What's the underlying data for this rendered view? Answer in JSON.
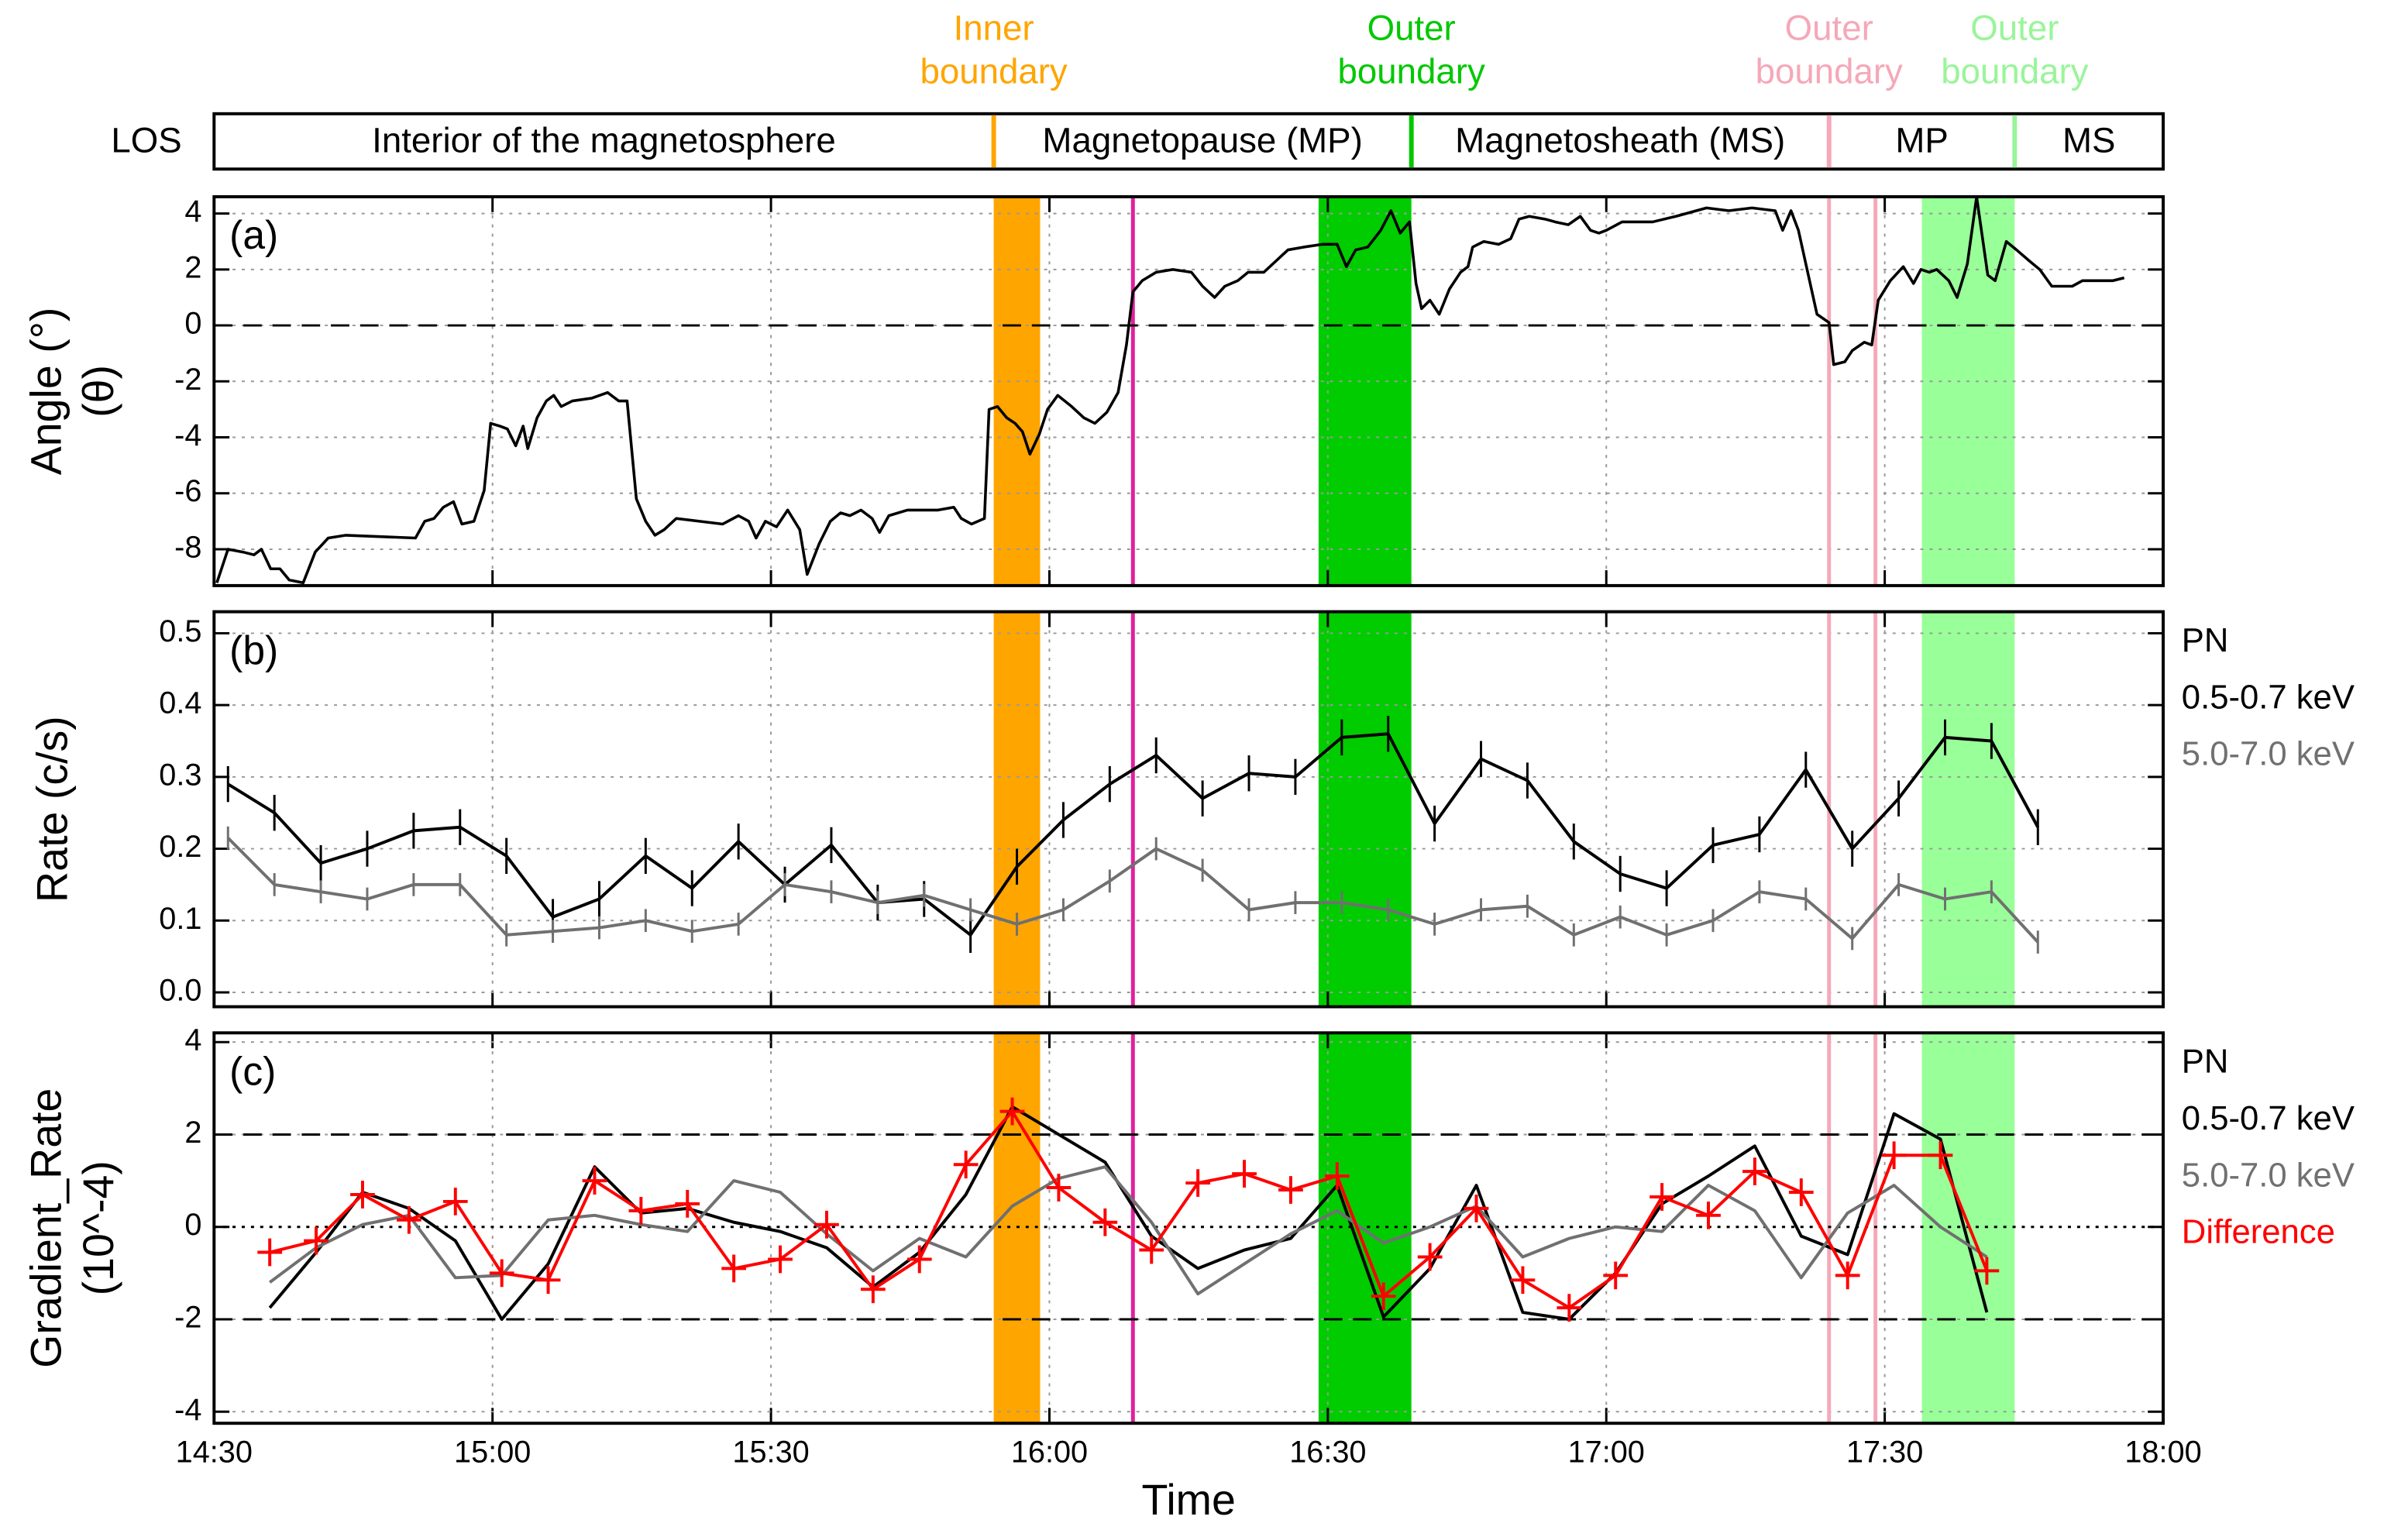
{
  "los": {
    "label": "LOS",
    "segments": [
      "Interior of the magnetosphere",
      "Magnetopause (MP)",
      "Magnetosheath (MS)",
      "MP",
      "MS"
    ],
    "separators": [
      {
        "x": 954,
        "color": "#ffa500",
        "label": [
          "Inner",
          "boundary"
        ]
      },
      {
        "x": 999,
        "color": "#00c800",
        "label": [
          "Outer",
          "boundary"
        ]
      },
      {
        "x": 1044,
        "color": "#f5a8b8",
        "label": [
          "Outer",
          "boundary"
        ]
      },
      {
        "x": 1064,
        "color": "#99f599",
        "label": [
          "Outer",
          "boundary"
        ]
      }
    ]
  },
  "time_markers": {
    "bands": [
      {
        "from": 954,
        "to": 959,
        "color": "#ffa500"
      },
      {
        "from": 989,
        "to": 999,
        "color": "#00cc00"
      },
      {
        "from": 1054,
        "to": 1064,
        "color": "#99ff99"
      }
    ],
    "lines": [
      {
        "at": 969,
        "color": "#e0209c"
      },
      {
        "at": 1044,
        "color": "#f5a8b8"
      },
      {
        "at": 1049,
        "color": "#f5a8b8"
      }
    ]
  },
  "chart_data": [
    {
      "type": "line",
      "panel_label": "(a)",
      "ylabel": [
        "Angle (°)",
        "(θ)"
      ],
      "color": "#000000",
      "xlim": [
        870,
        1080
      ],
      "xticks": [
        870,
        900,
        930,
        960,
        990,
        1020,
        1050,
        1080
      ],
      "ylim": [
        -9.3,
        4.6
      ],
      "yticks": [
        -8,
        -6,
        -4,
        -2,
        0,
        2,
        4
      ],
      "grid": true,
      "reference_lines": [
        {
          "value": 0,
          "style": "dashed"
        }
      ],
      "x": [
        870.3,
        871.5,
        873.1,
        874.3,
        875.1,
        876.1,
        877.1,
        878.1,
        879.6,
        880.9,
        882.3,
        884.2,
        891.7,
        892.7,
        893.7,
        894.7,
        895.8,
        896.7,
        898.0,
        899.1,
        899.8,
        900.8,
        901.6,
        902.5,
        903.3,
        903.8,
        904.8,
        905.8,
        906.6,
        907.4,
        908.6,
        910.7,
        912.4,
        913.6,
        914.5,
        915.5,
        916.5,
        917.5,
        918.5,
        919.8,
        922.3,
        924.8,
        926.5,
        927.6,
        928.4,
        929.4,
        930.6,
        931.8,
        933.1,
        933.9,
        935.2,
        936.4,
        937.5,
        938.5,
        939.7,
        940.9,
        941.7,
        942.7,
        944.7,
        948.0,
        949.7,
        950.5,
        951.6,
        953.0,
        953.5,
        954.4,
        955.4,
        956.3,
        957.1,
        957.9,
        958.9,
        959.8,
        960.9,
        962.4,
        963.7,
        964.9,
        966.2,
        967.4,
        968.3,
        969.0,
        970.0,
        971.5,
        973.3,
        975.3,
        976.5,
        977.8,
        978.9,
        980.3,
        981.4,
        983.1,
        984.4,
        985.7,
        987.4,
        989.4,
        991.0,
        992.0,
        993.0,
        994.3,
        995.7,
        996.8,
        997.8,
        998.8,
        999.5,
        1000.1,
        1001.0,
        1002.0,
        1003.1,
        1004.3,
        1005.1,
        1005.6,
        1006.8,
        1008.4,
        1009.7,
        1010.6,
        1011.7,
        1013.4,
        1014.5,
        1015.9,
        1017.2,
        1018.3,
        1019.2,
        1020.0,
        1021.7,
        1025.0,
        1027.5,
        1030.8,
        1033.2,
        1035.7,
        1038.2,
        1039.0,
        1039.9,
        1040.7,
        1041.5,
        1042.7,
        1044.0,
        1044.5,
        1045.7,
        1046.5,
        1047.8,
        1048.6,
        1049.3,
        1050.6,
        1052.0,
        1053.1,
        1053.9,
        1054.8,
        1055.6,
        1056.9,
        1057.8,
        1058.9,
        1059.9,
        1061.1,
        1061.9,
        1063.1,
        1064.2,
        1065.6,
        1066.7,
        1068.0,
        1070.2,
        1071.3,
        1073.8,
        1074.6,
        1075.8
      ],
      "values": [
        -9.2,
        -8.0,
        -8.1,
        -8.2,
        -8.0,
        -8.7,
        -8.7,
        -9.1,
        -9.2,
        -8.1,
        -7.6,
        -7.5,
        -7.6,
        -7.0,
        -6.9,
        -6.5,
        -6.3,
        -7.1,
        -7.0,
        -5.9,
        -3.5,
        -3.6,
        -3.7,
        -4.3,
        -3.6,
        -4.4,
        -3.3,
        -2.7,
        -2.5,
        -2.9,
        -2.7,
        -2.6,
        -2.4,
        -2.7,
        -2.7,
        -6.2,
        -7.0,
        -7.5,
        -7.3,
        -6.9,
        -7.0,
        -7.1,
        -6.8,
        -7.0,
        -7.6,
        -7.0,
        -7.2,
        -6.6,
        -7.3,
        -8.9,
        -7.8,
        -7.0,
        -6.7,
        -6.8,
        -6.6,
        -6.9,
        -7.4,
        -6.8,
        -6.6,
        -6.6,
        -6.5,
        -6.9,
        -7.1,
        -6.9,
        -3.0,
        -2.9,
        -3.3,
        -3.5,
        -3.8,
        -4.6,
        -3.9,
        -3.0,
        -2.5,
        -2.9,
        -3.3,
        -3.5,
        -3.1,
        -2.4,
        -0.7,
        1.2,
        1.6,
        1.9,
        2.0,
        1.9,
        1.4,
        1.0,
        1.4,
        1.6,
        1.9,
        1.9,
        2.3,
        2.7,
        2.8,
        2.9,
        2.9,
        2.1,
        2.7,
        2.8,
        3.4,
        4.1,
        3.3,
        3.7,
        1.5,
        0.6,
        0.9,
        0.4,
        1.3,
        1.9,
        2.1,
        2.8,
        3.0,
        2.9,
        3.1,
        3.8,
        3.9,
        3.8,
        3.7,
        3.6,
        3.9,
        3.4,
        3.3,
        3.4,
        3.7,
        3.7,
        3.9,
        4.2,
        4.1,
        4.2,
        4.1,
        3.4,
        4.1,
        3.4,
        2.2,
        0.4,
        0.1,
        -1.4,
        -1.3,
        -0.9,
        -0.6,
        -0.7,
        0.9,
        1.6,
        2.1,
        1.5,
        2.0,
        1.9,
        2.0,
        1.6,
        1.0,
        2.2,
        4.6,
        1.8,
        1.6,
        3.0,
        2.7,
        2.3,
        2.0,
        1.4,
        1.4,
        1.6,
        1.6,
        1.6,
        1.7
      ]
    },
    {
      "type": "line",
      "panel_label": "(b)",
      "ylabel": [
        "Rate (c/s)"
      ],
      "legend_title": "PN",
      "xlim": [
        870,
        1080
      ],
      "xticks": [
        870,
        900,
        930,
        960,
        990,
        1020,
        1050,
        1080
      ],
      "ylim": [
        -0.02,
        0.53
      ],
      "yticks": [
        {
          "value": 0,
          "label": "0.0"
        },
        0.1,
        0.2,
        0.3,
        0.4,
        0.5
      ],
      "grid": true,
      "x": [
        871.5,
        876.5,
        881.5,
        886.5,
        891.5,
        896.5,
        901.5,
        906.5,
        911.5,
        916.5,
        921.5,
        926.5,
        931.5,
        936.5,
        941.5,
        946.5,
        951.5,
        956.5,
        961.5,
        966.5,
        971.5,
        976.5,
        981.5,
        986.5,
        991.5,
        996.5,
        1001.5,
        1006.5,
        1011.5,
        1016.5,
        1021.5,
        1026.5,
        1031.5,
        1036.5,
        1041.5,
        1046.5,
        1051.5,
        1056.5,
        1061.5,
        1066.5
      ],
      "series": [
        {
          "name": "0.5-0.7 keV",
          "color": "#000000",
          "values": [
            0.29,
            0.25,
            0.18,
            0.2,
            0.225,
            0.23,
            0.19,
            0.105,
            0.13,
            0.19,
            0.145,
            0.21,
            0.15,
            0.205,
            0.125,
            0.13,
            0.08,
            0.175,
            0.24,
            0.29,
            0.33,
            0.27,
            0.305,
            0.3,
            0.355,
            0.36,
            0.235,
            0.325,
            0.295,
            0.21,
            0.165,
            0.145,
            0.205,
            0.22,
            0.31,
            0.2,
            0.27,
            0.355,
            0.35,
            0.23
          ],
          "errors": [
            0.025,
            0.025,
            0.025,
            0.025,
            0.025,
            0.025,
            0.025,
            0.025,
            0.025,
            0.025,
            0.025,
            0.025,
            0.025,
            0.025,
            0.025,
            0.025,
            0.025,
            0.025,
            0.025,
            0.025,
            0.025,
            0.025,
            0.025,
            0.025,
            0.025,
            0.025,
            0.025,
            0.025,
            0.025,
            0.025,
            0.025,
            0.025,
            0.025,
            0.025,
            0.025,
            0.025,
            0.025,
            0.025,
            0.025,
            0.025
          ]
        },
        {
          "name": "5.0-7.0 keV",
          "color": "#707070",
          "values": [
            0.215,
            0.15,
            0.14,
            0.13,
            0.15,
            0.15,
            0.08,
            0.085,
            0.09,
            0.1,
            0.085,
            0.095,
            0.15,
            0.14,
            0.125,
            0.135,
            0.115,
            0.095,
            0.115,
            0.155,
            0.2,
            0.17,
            0.115,
            0.125,
            0.125,
            0.115,
            0.095,
            0.115,
            0.12,
            0.08,
            0.105,
            0.08,
            0.1,
            0.14,
            0.13,
            0.075,
            0.15,
            0.13,
            0.14,
            0.07
          ],
          "errors": [
            0.016,
            0.016,
            0.016,
            0.016,
            0.016,
            0.016,
            0.016,
            0.016,
            0.016,
            0.016,
            0.016,
            0.016,
            0.016,
            0.016,
            0.016,
            0.016,
            0.016,
            0.016,
            0.016,
            0.016,
            0.016,
            0.016,
            0.016,
            0.016,
            0.016,
            0.016,
            0.016,
            0.016,
            0.016,
            0.016,
            0.016,
            0.016,
            0.016,
            0.016,
            0.016,
            0.016,
            0.016,
            0.016,
            0.016,
            0.016
          ]
        }
      ]
    },
    {
      "type": "line",
      "panel_label": "(c)",
      "ylabel": [
        "Gradient_Rate",
        "(10^-4)"
      ],
      "xlabel": "Time",
      "legend_title": "PN",
      "xlim": [
        870,
        1080
      ],
      "xticks": [
        {
          "value": 870,
          "label": "14:30"
        },
        {
          "value": 900,
          "label": "15:00"
        },
        {
          "value": 930,
          "label": "15:30"
        },
        {
          "value": 960,
          "label": "16:00"
        },
        {
          "value": 990,
          "label": "16:30"
        },
        {
          "value": 1020,
          "label": "17:00"
        },
        {
          "value": 1050,
          "label": "17:30"
        },
        {
          "value": 1080,
          "label": "18:00"
        }
      ],
      "ylim": [
        -4.25,
        4.2
      ],
      "yticks": [
        -4,
        -2,
        0,
        2,
        4
      ],
      "grid": true,
      "reference_lines": [
        {
          "value": 2,
          "style": "dashed"
        },
        {
          "value": -2,
          "style": "dashed"
        },
        {
          "value": 0,
          "style": "dotted"
        }
      ],
      "x": [
        876,
        881,
        886,
        891,
        896,
        901,
        906,
        911,
        916,
        921,
        926,
        931,
        936,
        941,
        946,
        951,
        956,
        961,
        966,
        971,
        976,
        981,
        986,
        991,
        996,
        1001,
        1006,
        1011,
        1016,
        1021,
        1026,
        1031,
        1036,
        1041,
        1046,
        1051,
        1056,
        1061
      ],
      "series": [
        {
          "name": "0.5-0.7 keV",
          "color": "#000000",
          "values": [
            -1.75,
            -0.55,
            0.75,
            0.4,
            -0.3,
            -2.0,
            -0.8,
            1.3,
            0.3,
            0.4,
            0.1,
            -0.1,
            -0.45,
            -1.3,
            -0.55,
            0.7,
            2.6,
            2.0,
            1.4,
            -0.2,
            -0.9,
            -0.5,
            -0.25,
            0.9,
            -1.95,
            -0.9,
            0.9,
            -1.85,
            -2.0,
            -1.0,
            0.5,
            1.1,
            1.75,
            -0.2,
            -0.6,
            2.45,
            1.9,
            -1.85
          ]
        },
        {
          "name": "5.0-7.0 keV",
          "color": "#707070",
          "values": [
            -1.2,
            -0.45,
            0.05,
            0.25,
            -1.1,
            -1.05,
            0.15,
            0.25,
            0.05,
            -0.1,
            1.0,
            0.75,
            -0.15,
            -0.95,
            -0.25,
            -0.65,
            0.45,
            1.05,
            1.3,
            0.1,
            -1.45,
            -0.8,
            -0.15,
            0.35,
            -0.35,
            0.0,
            0.45,
            -0.65,
            -0.25,
            0.0,
            -0.1,
            0.9,
            0.35,
            -1.1,
            0.3,
            0.9,
            0.0,
            -0.65
          ]
        },
        {
          "name": "Difference",
          "color": "#ff0000",
          "marker": "plus",
          "values": [
            -0.55,
            -0.3,
            0.7,
            0.15,
            0.55,
            -1.0,
            -1.15,
            1.0,
            0.35,
            0.5,
            -0.9,
            -0.7,
            0.05,
            -1.35,
            -0.7,
            1.35,
            2.5,
            0.85,
            0.1,
            -0.5,
            0.95,
            1.15,
            0.8,
            1.1,
            -1.5,
            -0.65,
            0.4,
            -1.15,
            -1.75,
            -1.05,
            0.65,
            0.25,
            1.2,
            0.75,
            -1.05,
            1.55,
            1.55,
            -0.95
          ]
        }
      ]
    }
  ]
}
